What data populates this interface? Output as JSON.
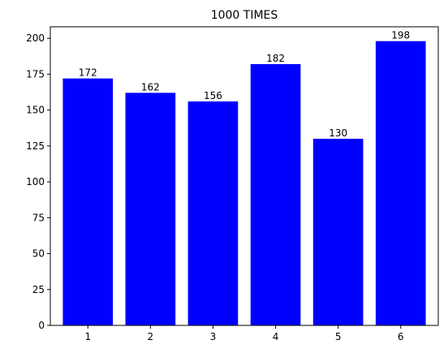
{
  "chart_data": {
    "type": "bar",
    "title": "1000 TIMES",
    "xlabel": "",
    "ylabel": "",
    "categories": [
      "1",
      "2",
      "3",
      "4",
      "5",
      "6"
    ],
    "values": [
      172,
      162,
      156,
      182,
      130,
      198
    ],
    "bar_labels": [
      "172",
      "162",
      "156",
      "182",
      "130",
      "198"
    ],
    "ylim": [
      0,
      208
    ],
    "yticks": [
      0,
      25,
      50,
      75,
      100,
      125,
      150,
      175,
      200
    ],
    "bar_color": "#0000ff",
    "grid": false,
    "legend": "none"
  }
}
